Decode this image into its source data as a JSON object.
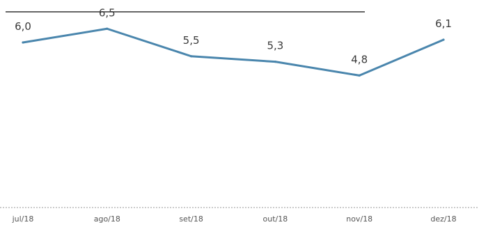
{
  "chart_data": {
    "type": "line",
    "categories": [
      "jul/18",
      "ago/18",
      "set/18",
      "out/18",
      "nov/18",
      "dez/18"
    ],
    "series": [
      {
        "values": [
          6.0,
          6.5,
          5.5,
          5.3,
          4.8,
          6.1
        ],
        "value_labels": [
          "6,0",
          "6,5",
          "5,5",
          "5,3",
          "4,8",
          "6,1"
        ]
      }
    ],
    "ylim": [
      0,
      8
    ],
    "grid": false,
    "legend": "none",
    "colors": {
      "line": "#4a86ad",
      "top_rule": "#333333",
      "baseline": "#9a9a9a",
      "text": "#3a3a3a"
    }
  }
}
